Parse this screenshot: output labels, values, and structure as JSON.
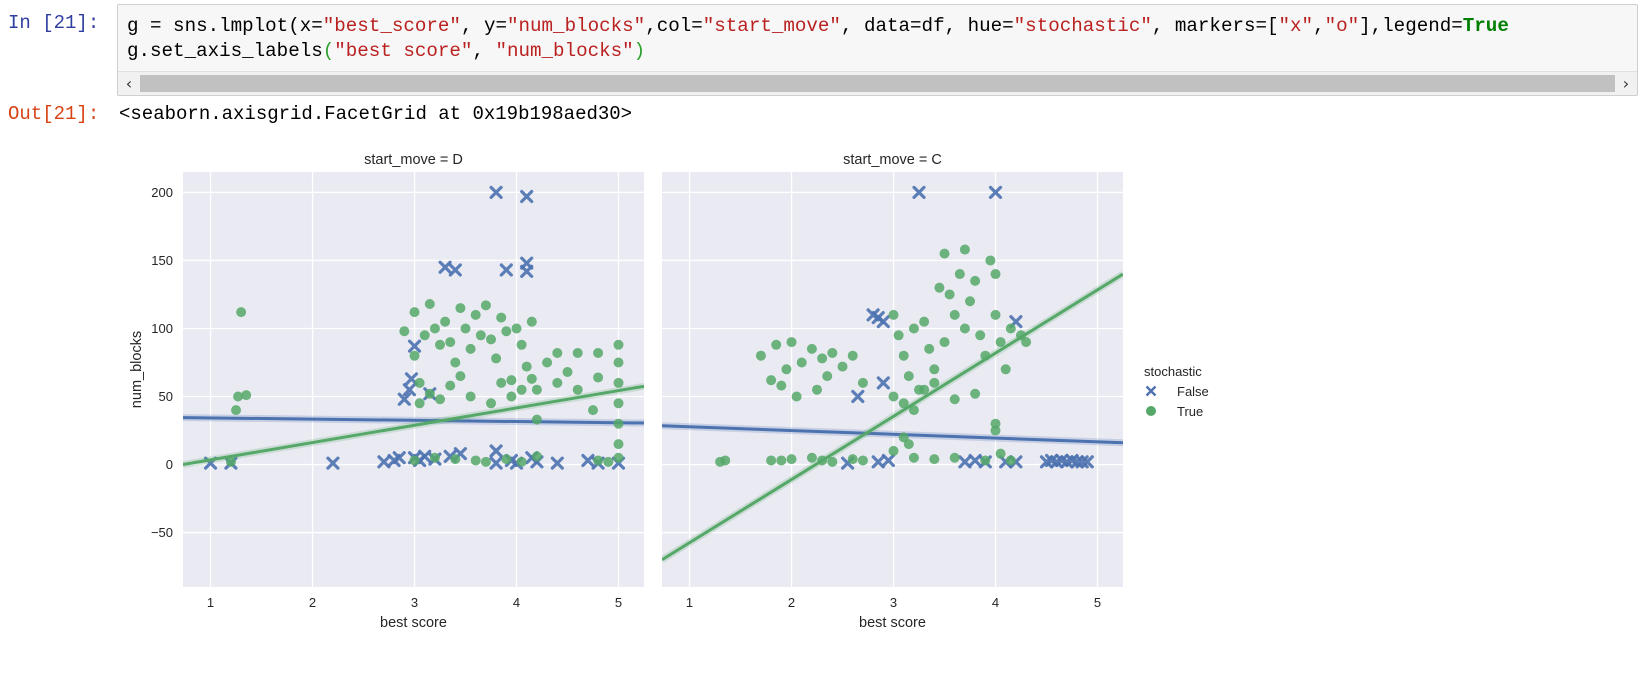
{
  "cell_in": {
    "prompt": "In [21]:",
    "code_line1": [
      {
        "t": "g = sns.lmplot(x=",
        "c": "plain"
      },
      {
        "t": "\"best_score\"",
        "c": "str"
      },
      {
        "t": ", y=",
        "c": "plain"
      },
      {
        "t": "\"num_blocks\"",
        "c": "str"
      },
      {
        "t": ",col=",
        "c": "plain"
      },
      {
        "t": "\"start_move\"",
        "c": "str"
      },
      {
        "t": ", data=df, hue=",
        "c": "plain"
      },
      {
        "t": "\"stochastic\"",
        "c": "str"
      },
      {
        "t": ", markers=[",
        "c": "plain"
      },
      {
        "t": "\"x\"",
        "c": "str"
      },
      {
        "t": ",",
        "c": "plain"
      },
      {
        "t": "\"o\"",
        "c": "str"
      },
      {
        "t": "],legend=",
        "c": "plain"
      },
      {
        "t": "True",
        "c": "kw"
      }
    ],
    "code_line2": [
      {
        "t": "g.set_axis_labels",
        "c": "plain"
      },
      {
        "t": "(",
        "c": "paren"
      },
      {
        "t": "\"best score\"",
        "c": "str"
      },
      {
        "t": ", ",
        "c": "plain"
      },
      {
        "t": "\"num_blocks\"",
        "c": "str"
      },
      {
        "t": ")",
        "c": "paren"
      }
    ],
    "scroll_left": "‹",
    "scroll_right": "›"
  },
  "cell_out": {
    "prompt": "Out[21]:",
    "text": "<seaborn.axisgrid.FacetGrid at 0x19b198aed30>"
  },
  "chart_data": {
    "type": "scatter",
    "facet_column": "start_move",
    "xlabel": "best score",
    "ylabel": "num_blocks",
    "x_ticks": [
      1,
      2,
      3,
      4,
      5
    ],
    "y_ticks": [
      -50,
      0,
      50,
      100,
      150,
      200
    ],
    "y_tick_labels": [
      "−50",
      "0",
      "50",
      "100",
      "150",
      "200"
    ],
    "xlim": [
      0.73,
      5.25
    ],
    "ylim": [
      -90,
      215
    ],
    "grid": true,
    "legend": {
      "title": "stochastic",
      "placement": "right",
      "entries": [
        "False",
        "True"
      ]
    },
    "colors": {
      "False": "#4c72b0",
      "True": "#55a868",
      "background": "#eaeaf2"
    },
    "markers": {
      "False": "x",
      "True": "o"
    },
    "panels": [
      {
        "title": "start_move = D",
        "series": [
          {
            "name": "False",
            "points": [
              [
                1.0,
                1
              ],
              [
                1.2,
                1
              ],
              [
                2.2,
                1
              ],
              [
                2.7,
                2
              ],
              [
                2.8,
                3
              ],
              [
                2.85,
                5
              ],
              [
                2.9,
                48
              ],
              [
                2.95,
                55
              ],
              [
                2.97,
                63
              ],
              [
                3.0,
                5
              ],
              [
                3.0,
                87
              ],
              [
                3.05,
                3
              ],
              [
                3.1,
                6
              ],
              [
                3.15,
                52
              ],
              [
                3.2,
                4
              ],
              [
                3.3,
                145
              ],
              [
                3.4,
                143
              ],
              [
                3.35,
                6
              ],
              [
                3.45,
                8
              ],
              [
                3.8,
                200
              ],
              [
                3.8,
                10
              ],
              [
                3.8,
                1
              ],
              [
                3.9,
                143
              ],
              [
                3.95,
                3
              ],
              [
                4.0,
                1
              ],
              [
                4.1,
                197
              ],
              [
                4.1,
                148
              ],
              [
                4.1,
                142
              ],
              [
                4.15,
                5
              ],
              [
                4.2,
                2
              ],
              [
                4.4,
                1
              ],
              [
                4.7,
                3
              ],
              [
                4.8,
                1
              ],
              [
                5.0,
                1
              ]
            ],
            "fit": {
              "x": [
                0.73,
                5.25
              ],
              "y": [
                34.5,
                30.5
              ]
            }
          },
          {
            "name": "True",
            "points": [
              [
                1.2,
                2
              ],
              [
                1.25,
                40
              ],
              [
                1.27,
                50
              ],
              [
                1.3,
                112
              ],
              [
                1.35,
                51
              ],
              [
                2.9,
                98
              ],
              [
                3.0,
                112
              ],
              [
                3.0,
                80
              ],
              [
                3.05,
                60
              ],
              [
                3.1,
                95
              ],
              [
                3.15,
                118
              ],
              [
                3.2,
                100
              ],
              [
                3.25,
                88
              ],
              [
                3.3,
                105
              ],
              [
                3.35,
                90
              ],
              [
                3.4,
                75
              ],
              [
                3.45,
                115
              ],
              [
                3.5,
                100
              ],
              [
                3.55,
                85
              ],
              [
                3.6,
                110
              ],
              [
                3.65,
                95
              ],
              [
                3.7,
                117
              ],
              [
                3.75,
                92
              ],
              [
                3.8,
                78
              ],
              [
                3.85,
                108
              ],
              [
                3.9,
                98
              ],
              [
                3.95,
                62
              ],
              [
                4.0,
                100
              ],
              [
                4.05,
                88
              ],
              [
                4.1,
                72
              ],
              [
                4.15,
                105
              ],
              [
                4.2,
                55
              ],
              [
                4.2,
                33
              ],
              [
                3.05,
                45
              ],
              [
                3.15,
                52
              ],
              [
                3.25,
                48
              ],
              [
                3.35,
                58
              ],
              [
                3.45,
                65
              ],
              [
                3.55,
                50
              ],
              [
                3.75,
                45
              ],
              [
                3.85,
                60
              ],
              [
                3.95,
                50
              ],
              [
                4.05,
                55
              ],
              [
                4.15,
                63
              ],
              [
                3.0,
                3
              ],
              [
                3.2,
                5
              ],
              [
                3.4,
                4
              ],
              [
                3.6,
                3
              ],
              [
                3.7,
                2
              ],
              [
                3.9,
                4
              ],
              [
                4.05,
                2
              ],
              [
                4.2,
                6
              ],
              [
                4.3,
                75
              ],
              [
                4.4,
                82
              ],
              [
                4.4,
                60
              ],
              [
                4.5,
                68
              ],
              [
                4.6,
                82
              ],
              [
                4.6,
                55
              ],
              [
                4.8,
                82
              ],
              [
                4.8,
                64
              ],
              [
                4.8,
                3
              ],
              [
                4.75,
                40
              ],
              [
                4.9,
                2
              ],
              [
                5.0,
                88
              ],
              [
                5.0,
                75
              ],
              [
                5.0,
                60
              ],
              [
                5.0,
                45
              ],
              [
                5.0,
                30
              ],
              [
                5.0,
                15
              ],
              [
                5.0,
                5
              ]
            ],
            "fit": {
              "x": [
                0.73,
                5.25
              ],
              "y": [
                0,
                57.5
              ]
            }
          }
        ]
      },
      {
        "title": "start_move = C",
        "series": [
          {
            "name": "False",
            "points": [
              [
                2.55,
                1
              ],
              [
                2.65,
                50
              ],
              [
                2.8,
                110
              ],
              [
                2.85,
                108
              ],
              [
                2.9,
                105
              ],
              [
                2.9,
                60
              ],
              [
                2.95,
                3
              ],
              [
                2.85,
                2
              ],
              [
                3.25,
                200
              ],
              [
                4.0,
                200
              ],
              [
                3.7,
                2
              ],
              [
                3.8,
                3
              ],
              [
                3.9,
                2
              ],
              [
                4.1,
                2
              ],
              [
                4.2,
                2
              ],
              [
                4.2,
                105
              ],
              [
                4.5,
                2
              ],
              [
                4.55,
                3
              ],
              [
                4.6,
                2
              ],
              [
                4.65,
                3
              ],
              [
                4.7,
                2
              ],
              [
                4.75,
                3
              ],
              [
                4.8,
                2
              ],
              [
                4.85,
                2
              ],
              [
                4.9,
                2
              ]
            ],
            "fit": {
              "x": [
                0.73,
                5.25
              ],
              "y": [
                28.5,
                16
              ]
            }
          },
          {
            "name": "True",
            "points": [
              [
                1.3,
                2
              ],
              [
                1.35,
                3
              ],
              [
                1.7,
                80
              ],
              [
                1.8,
                62
              ],
              [
                1.85,
                88
              ],
              [
                1.9,
                58
              ],
              [
                1.95,
                70
              ],
              [
                2.0,
                90
              ],
              [
                2.05,
                50
              ],
              [
                2.1,
                75
              ],
              [
                2.2,
                85
              ],
              [
                2.25,
                55
              ],
              [
                2.3,
                78
              ],
              [
                2.35,
                65
              ],
              [
                2.4,
                82
              ],
              [
                2.5,
                72
              ],
              [
                2.6,
                80
              ],
              [
                2.7,
                60
              ],
              [
                1.8,
                3
              ],
              [
                1.9,
                3
              ],
              [
                2.0,
                4
              ],
              [
                2.2,
                5
              ],
              [
                2.3,
                3
              ],
              [
                2.4,
                2
              ],
              [
                2.6,
                4
              ],
              [
                2.7,
                3
              ],
              [
                3.0,
                110
              ],
              [
                3.05,
                95
              ],
              [
                3.1,
                80
              ],
              [
                3.15,
                65
              ],
              [
                3.2,
                100
              ],
              [
                3.25,
                55
              ],
              [
                3.3,
                105
              ],
              [
                3.35,
                85
              ],
              [
                3.4,
                70
              ],
              [
                3.45,
                130
              ],
              [
                3.5,
                155
              ],
              [
                3.5,
                90
              ],
              [
                3.55,
                125
              ],
              [
                3.6,
                110
              ],
              [
                3.65,
                140
              ],
              [
                3.7,
                158
              ],
              [
                3.7,
                100
              ],
              [
                3.75,
                120
              ],
              [
                3.8,
                135
              ],
              [
                3.85,
                95
              ],
              [
                3.9,
                80
              ],
              [
                3.95,
                150
              ],
              [
                4.0,
                140
              ],
              [
                4.0,
                110
              ],
              [
                4.05,
                90
              ],
              [
                4.1,
                70
              ],
              [
                4.15,
                100
              ],
              [
                4.25,
                95
              ],
              [
                4.3,
                90
              ],
              [
                3.0,
                50
              ],
              [
                3.1,
                45
              ],
              [
                3.2,
                40
              ],
              [
                3.3,
                55
              ],
              [
                3.4,
                60
              ],
              [
                3.6,
                48
              ],
              [
                3.8,
                52
              ],
              [
                4.0,
                30
              ],
              [
                4.0,
                25
              ],
              [
                3.1,
                20
              ],
              [
                3.15,
                15
              ],
              [
                3.0,
                10
              ],
              [
                3.2,
                5
              ],
              [
                3.4,
                4
              ],
              [
                3.6,
                5
              ],
              [
                3.9,
                3
              ],
              [
                4.05,
                8
              ],
              [
                4.15,
                3
              ]
            ],
            "fit": {
              "x": [
                0.73,
                5.25
              ],
              "y": [
                -70,
                140
              ]
            }
          }
        ]
      }
    ]
  }
}
